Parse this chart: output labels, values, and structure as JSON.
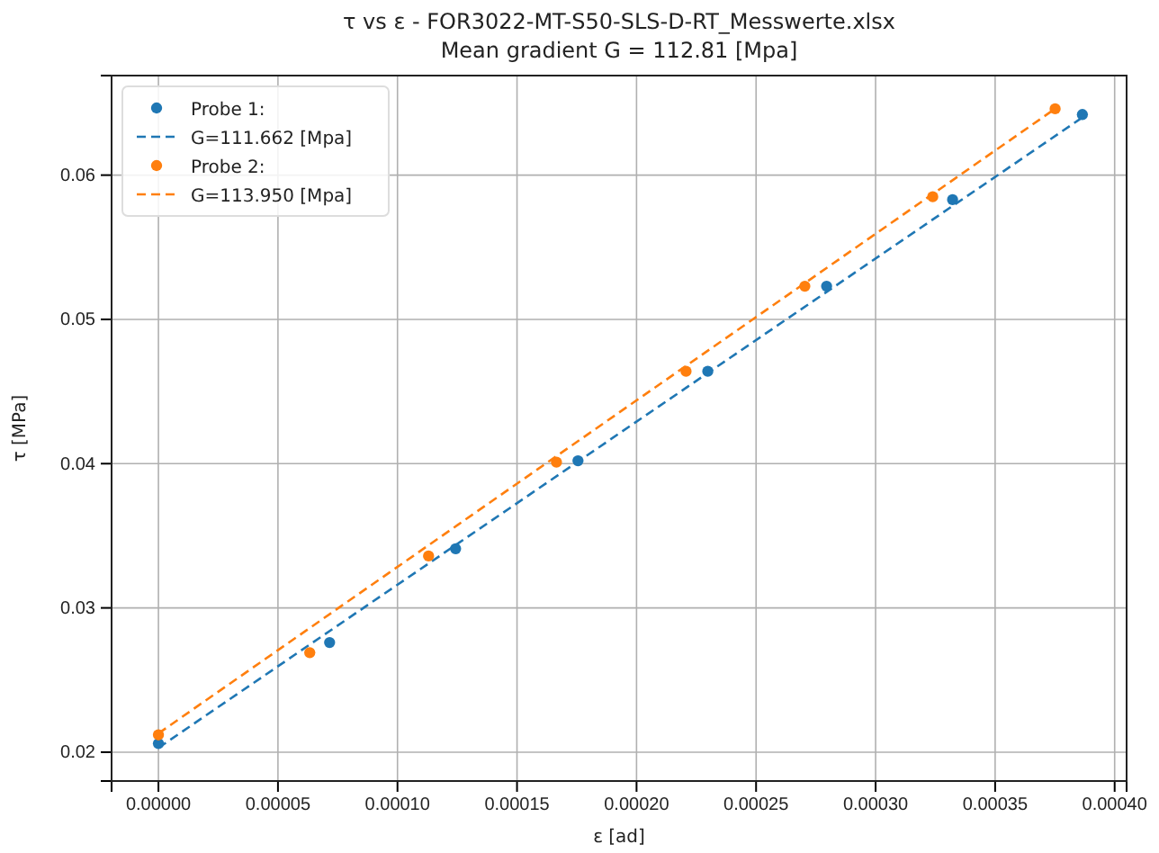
{
  "chart_data": {
    "type": "scatter",
    "title": "τ vs ε - FOR3022-MT-S50-SLS-D-RT_Messwerte.xlsx",
    "subtitle": "Mean gradient G = 112.81 [Mpa]",
    "xlabel": "ε [ad]",
    "ylabel": "τ [MPa]",
    "xlim": [
      -1.96e-05,
      0.000405
    ],
    "ylim": [
      0.018,
      0.0669
    ],
    "xticks": [
      {
        "value": 0,
        "label": "0.00000"
      },
      {
        "value": 5e-05,
        "label": "0.00005"
      },
      {
        "value": 0.0001,
        "label": "0.00010"
      },
      {
        "value": 0.00015,
        "label": "0.00015"
      },
      {
        "value": 0.0002,
        "label": "0.00020"
      },
      {
        "value": 0.00025,
        "label": "0.00025"
      },
      {
        "value": 0.0003,
        "label": "0.00030"
      },
      {
        "value": 0.00035,
        "label": "0.00035"
      },
      {
        "value": 0.0004,
        "label": "0.00040"
      }
    ],
    "yticks": [
      0.02,
      0.03,
      0.04,
      0.05,
      0.06
    ],
    "grid": true,
    "legend": "top left",
    "series": [
      {
        "name": "Probe 1:",
        "marker": "circle",
        "color": "#1f77b4",
        "x": [
          0,
          7.16e-05,
          0.0001243,
          0.0001755,
          0.0002298,
          0.0002795,
          0.0003322,
          0.0003865
        ],
        "values": [
          0.0206,
          0.0276,
          0.0341,
          0.0402,
          0.0464,
          0.0523,
          0.0583,
          0.0642
        ]
      },
      {
        "name": "G=111.662 [Mpa]",
        "type": "line",
        "marker": "none",
        "line_style": "dashed",
        "color": "#1f77b4",
        "x": [
          0,
          0.0003865
        ],
        "values": [
          0.0203,
          0.064
        ]
      },
      {
        "name": "Probe 2:",
        "marker": "circle",
        "color": "#ff7f0e",
        "x": [
          0,
          6.33e-05,
          0.000113,
          0.0001665,
          0.0002207,
          0.0002704,
          0.0003239,
          0.0003751
        ],
        "values": [
          0.0212,
          0.0269,
          0.0336,
          0.0401,
          0.0464,
          0.0523,
          0.0585,
          0.0646
        ]
      },
      {
        "name": "G=113.950 [Mpa]",
        "type": "line",
        "marker": "none",
        "line_style": "dashed",
        "color": "#ff7f0e",
        "x": [
          0,
          0.0003751
        ],
        "values": [
          0.0213,
          0.0646
        ]
      }
    ]
  }
}
